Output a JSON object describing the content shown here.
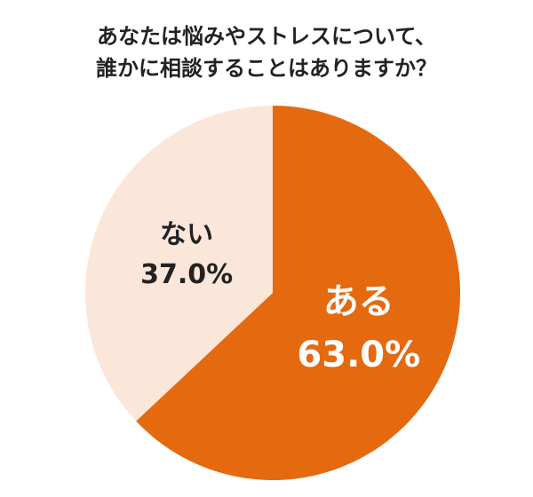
{
  "chart_data": {
    "type": "pie",
    "title": [
      "あなたは悩みやストレスについて、",
      "誰かに相談することはありますか？"
    ],
    "categories": [
      "ある",
      "ない"
    ],
    "values": [
      63.0,
      37.0
    ],
    "value_labels": [
      "63.0%",
      "37.0%"
    ],
    "colors": [
      "#e5690f",
      "#fbe6da"
    ]
  }
}
